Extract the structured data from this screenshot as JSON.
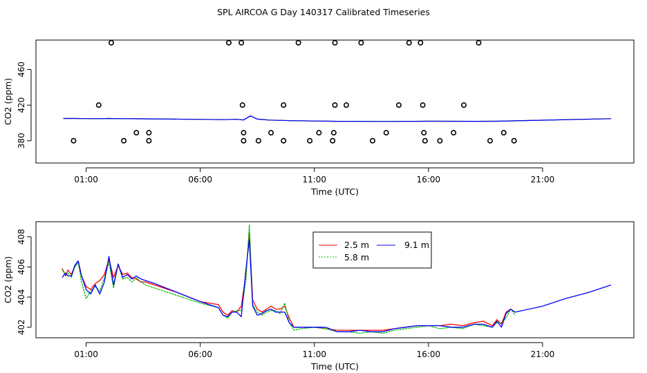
{
  "title": "SPL AIRCOA G  Day 140317  Calibrated Timeseries",
  "chart_data": [
    {
      "type": "scatter",
      "xlabel": "Time (UTC)",
      "ylabel": "CO2 (ppm)",
      "xlim": [
        -1.2,
        25.0
      ],
      "ylim": [
        355,
        493
      ],
      "xticks": [
        1,
        6,
        11,
        16,
        21
      ],
      "xtick_labels": [
        "01:00",
        "06:00",
        "11:00",
        "16:00",
        "21:00"
      ],
      "yticks": [
        380,
        420,
        460
      ],
      "ytick_labels": [
        "380",
        "420",
        "460"
      ],
      "flag_points": {
        "x": [
          0.45,
          1.55,
          2.1,
          2.65,
          3.2,
          3.75,
          3.75,
          7.25,
          7.8,
          7.85,
          7.9,
          7.9,
          8.55,
          9.1,
          9.65,
          9.65,
          10.3,
          10.8,
          11.2,
          11.8,
          11.85,
          11.9,
          11.9,
          12.4,
          13.05,
          13.55,
          14.15,
          14.7,
          15.15,
          15.65,
          15.75,
          15.8,
          15.85,
          16.5,
          17.1,
          17.55,
          18.2,
          18.7,
          19.3,
          19.75
        ],
        "y": [
          380,
          420,
          490,
          380,
          389,
          380,
          389,
          490,
          490,
          420,
          389,
          380,
          380,
          389,
          420,
          380,
          490,
          380,
          389,
          380,
          389,
          420,
          490,
          420,
          490,
          380,
          389,
          420,
          490,
          490,
          420,
          389,
          380,
          380,
          389,
          420,
          490,
          380,
          389,
          380
        ]
      },
      "series": [
        {
          "name": "2.5 m",
          "color": "#ff0000",
          "x": [
            0.0,
            0.5,
            1.5,
            2.0,
            2.5,
            3.0,
            3.5,
            6.0,
            7.0,
            7.6,
            7.9,
            8.2,
            8.5,
            9.0,
            10.0,
            12.0,
            14.0,
            16.0,
            18.0,
            19.0,
            21.0,
            24.0
          ],
          "y": [
            405,
            405,
            404.8,
            405,
            404.8,
            404.7,
            404.6,
            404,
            403.7,
            404.1,
            403.3,
            407.9,
            404.3,
            403.2,
            402.5,
            401.8,
            401.7,
            401.9,
            401.8,
            401.9,
            403.1,
            404.8
          ]
        },
        {
          "name": "5.8 m",
          "color": "#00c000",
          "x": [
            0.0,
            0.5,
            1.5,
            2.0,
            2.5,
            3.0,
            3.5,
            6.0,
            7.0,
            7.6,
            7.9,
            8.2,
            8.5,
            9.0,
            10.0,
            12.0,
            14.0,
            16.0,
            18.0,
            19.0,
            21.0,
            24.0
          ],
          "y": [
            405,
            405,
            404.8,
            405,
            404.8,
            404.7,
            404.6,
            404,
            403.7,
            404.1,
            403.3,
            407.9,
            404.3,
            403.2,
            402.5,
            401.8,
            401.7,
            401.9,
            401.8,
            401.9,
            403.1,
            404.8
          ]
        },
        {
          "name": "9.1 m",
          "color": "#0000ff",
          "x": [
            0.0,
            0.5,
            1.5,
            2.0,
            2.5,
            3.0,
            3.5,
            6.0,
            7.0,
            7.6,
            7.9,
            8.2,
            8.5,
            9.0,
            10.0,
            12.0,
            14.0,
            16.0,
            18.0,
            19.0,
            21.0,
            24.0
          ],
          "y": [
            405,
            405,
            404.8,
            405,
            404.8,
            404.7,
            404.6,
            404,
            403.7,
            404.1,
            403.3,
            407.9,
            404.3,
            403.2,
            402.5,
            401.8,
            401.7,
            401.9,
            401.8,
            401.9,
            403.1,
            404.8
          ]
        }
      ]
    },
    {
      "type": "line",
      "xlabel": "Time (UTC)",
      "ylabel": "CO2 (ppm)",
      "xlim": [
        -1.2,
        25.0
      ],
      "ylim": [
        401.3,
        409.0
      ],
      "xticks": [
        1,
        6,
        11,
        16,
        21
      ],
      "xtick_labels": [
        "01:00",
        "06:00",
        "11:00",
        "16:00",
        "21:00"
      ],
      "yticks": [
        402,
        404,
        406,
        408
      ],
      "ytick_labels": [
        "402",
        "404",
        "406",
        "408"
      ],
      "legend": {
        "position": "top-center",
        "entries": [
          "2.5 m",
          "5.8 m",
          "9.1 m"
        ]
      },
      "series": [
        {
          "name": "2.5 m",
          "color": "#ff0000",
          "x": [
            -0.05,
            0.1,
            0.2,
            0.35,
            0.5,
            0.65,
            0.8,
            1.0,
            1.2,
            1.4,
            1.6,
            1.8,
            2.0,
            2.2,
            2.4,
            2.6,
            2.8,
            3.0,
            3.2,
            3.4,
            3.6,
            4.0,
            5.0,
            6.0,
            6.8,
            7.0,
            7.2,
            7.4,
            7.6,
            7.8,
            8.0,
            8.15,
            8.3,
            8.5,
            8.7,
            8.9,
            9.1,
            9.3,
            9.5,
            9.7,
            9.9,
            10.1,
            10.4,
            11.0,
            11.5,
            12.0,
            12.5,
            13.0,
            13.5,
            14.0,
            14.5,
            15.0,
            15.5,
            16.0,
            16.5,
            17.0,
            17.5,
            18.0,
            18.4,
            18.8,
            19.0,
            19.2,
            19.4,
            19.6,
            19.8
          ],
          "y": [
            405.9,
            405.4,
            405.8,
            405.5,
            406.0,
            406.4,
            405.4,
            404.7,
            404.5,
            404.9,
            405.1,
            405.5,
            406.5,
            405.3,
            406.1,
            405.5,
            405.6,
            405.3,
            405.2,
            405.0,
            405.0,
            404.8,
            404.3,
            403.7,
            403.5,
            403.0,
            402.8,
            403.1,
            403.0,
            403.4,
            405.5,
            408.3,
            403.8,
            403.2,
            403.0,
            403.2,
            403.4,
            403.2,
            403.2,
            403.4,
            402.6,
            402.0,
            402.0,
            402.0,
            401.9,
            401.8,
            401.8,
            401.8,
            401.8,
            401.8,
            401.9,
            402.0,
            402.1,
            402.1,
            402.1,
            402.2,
            402.1,
            402.3,
            402.4,
            402.1,
            402.5,
            402.2,
            403.0,
            403.2,
            403.0
          ]
        },
        {
          "name": "5.8 m",
          "color": "#00c000",
          "x": [
            -0.05,
            0.1,
            0.2,
            0.35,
            0.5,
            0.65,
            0.8,
            1.0,
            1.2,
            1.4,
            1.6,
            1.8,
            2.0,
            2.2,
            2.4,
            2.6,
            2.8,
            3.0,
            3.2,
            3.4,
            3.6,
            4.0,
            5.0,
            6.0,
            6.8,
            7.0,
            7.2,
            7.4,
            7.6,
            7.8,
            8.0,
            8.15,
            8.3,
            8.5,
            8.7,
            8.9,
            9.1,
            9.3,
            9.5,
            9.7,
            9.9,
            10.1,
            10.4,
            11.0,
            11.5,
            12.0,
            12.5,
            13.0,
            13.5,
            14.0,
            14.5,
            15.0,
            15.5,
            16.0,
            16.5,
            17.0,
            17.5,
            18.0,
            18.4,
            18.8,
            19.0,
            19.2,
            19.4,
            19.6,
            19.8
          ],
          "y": [
            405.8,
            405.5,
            405.6,
            405.3,
            406.0,
            406.3,
            405.0,
            403.9,
            404.4,
            404.7,
            404.4,
            405.3,
            406.3,
            404.6,
            406.2,
            405.2,
            405.3,
            405.0,
            405.3,
            405.0,
            404.8,
            404.6,
            404.1,
            403.6,
            403.3,
            402.8,
            402.6,
            403.0,
            403.1,
            403.1,
            405.1,
            408.8,
            403.5,
            403.0,
            402.8,
            403.0,
            403.1,
            403.1,
            402.9,
            403.6,
            402.3,
            401.8,
            401.9,
            402.0,
            401.9,
            401.7,
            401.7,
            401.6,
            401.7,
            401.6,
            401.8,
            401.9,
            402.0,
            402.1,
            401.9,
            402.0,
            401.9,
            402.2,
            402.1,
            402.0,
            402.3,
            402.3,
            402.6,
            403.2,
            402.8
          ]
        },
        {
          "name": "9.1 m",
          "color": "#0000ff",
          "x": [
            -0.05,
            0.1,
            0.2,
            0.35,
            0.5,
            0.65,
            0.8,
            1.0,
            1.2,
            1.4,
            1.6,
            1.8,
            2.0,
            2.2,
            2.4,
            2.6,
            2.8,
            3.0,
            3.2,
            3.4,
            3.6,
            4.0,
            5.0,
            6.0,
            6.8,
            7.0,
            7.2,
            7.4,
            7.6,
            7.8,
            8.0,
            8.15,
            8.3,
            8.5,
            8.7,
            8.9,
            9.1,
            9.3,
            9.5,
            9.7,
            9.9,
            10.1,
            10.4,
            11.0,
            11.5,
            12.0,
            12.5,
            13.0,
            13.5,
            14.0,
            14.5,
            15.0,
            15.5,
            16.0,
            16.5,
            17.0,
            17.5,
            18.0,
            18.4,
            18.8,
            19.0,
            19.2,
            19.4,
            19.6,
            19.8,
            21.0,
            22.0,
            23.0,
            24.0
          ],
          "y": [
            405.3,
            405.6,
            405.4,
            405.4,
            406.1,
            406.4,
            405.4,
            404.5,
            404.2,
            404.8,
            404.2,
            405.0,
            406.7,
            404.8,
            406.2,
            405.3,
            405.5,
            405.2,
            405.4,
            405.2,
            405.1,
            404.9,
            404.3,
            403.7,
            403.3,
            402.8,
            402.7,
            403.0,
            403.0,
            402.7,
            405.8,
            407.8,
            403.4,
            402.8,
            402.9,
            403.1,
            403.2,
            403.0,
            403.0,
            403.0,
            402.3,
            402.0,
            402.0,
            402.0,
            402.0,
            401.7,
            401.7,
            401.8,
            401.7,
            401.7,
            401.9,
            402.0,
            402.1,
            402.1,
            402.1,
            402.0,
            402.0,
            402.2,
            402.2,
            402.0,
            402.4,
            402.0,
            402.9,
            403.2,
            403.0,
            403.4,
            403.9,
            404.3,
            404.8
          ]
        }
      ]
    }
  ]
}
